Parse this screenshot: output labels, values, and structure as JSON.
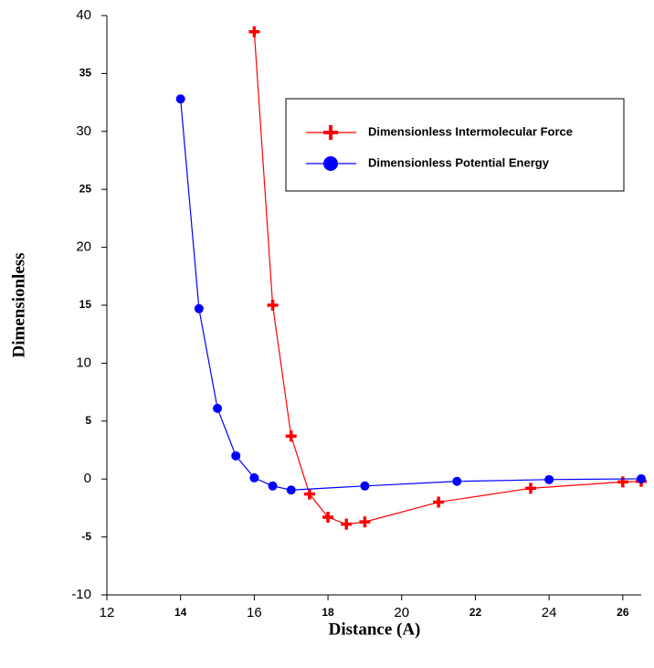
{
  "chart_data": {
    "type": "line",
    "xlabel": "Distance (A)",
    "ylabel": "Dimensionless",
    "xlim": [
      12,
      26.5
    ],
    "xticks": [
      12,
      14,
      16,
      18,
      20,
      22,
      24,
      26
    ],
    "ylim": [
      -10,
      40
    ],
    "yticks": [
      -10,
      -5,
      0,
      5,
      10,
      15,
      20,
      25,
      30,
      35,
      40
    ],
    "legend": "upper right",
    "series": [
      {
        "name": "Dimensionless Intermolecular Force",
        "color": "#ff0000",
        "marker": "plus",
        "x": [
          16,
          16.5,
          17,
          17.5,
          18,
          18.5,
          19,
          21,
          23.5,
          26,
          26.5
        ],
        "values": [
          38.6,
          15,
          3.7,
          -1.3,
          -3.3,
          -3.9,
          -3.7,
          -2.0,
          -0.8,
          -0.25,
          -0.2
        ]
      },
      {
        "name": "Dimensionless Potential Energy",
        "color": "#0000ff",
        "marker": "circle",
        "x": [
          14,
          14.5,
          15,
          15.5,
          16,
          16.5,
          17,
          19,
          21.5,
          24,
          26.5
        ],
        "values": [
          32.8,
          14.7,
          6.1,
          2,
          0.1,
          -0.6,
          -0.95,
          -0.6,
          -0.2,
          -0.05,
          0.02
        ]
      }
    ]
  }
}
